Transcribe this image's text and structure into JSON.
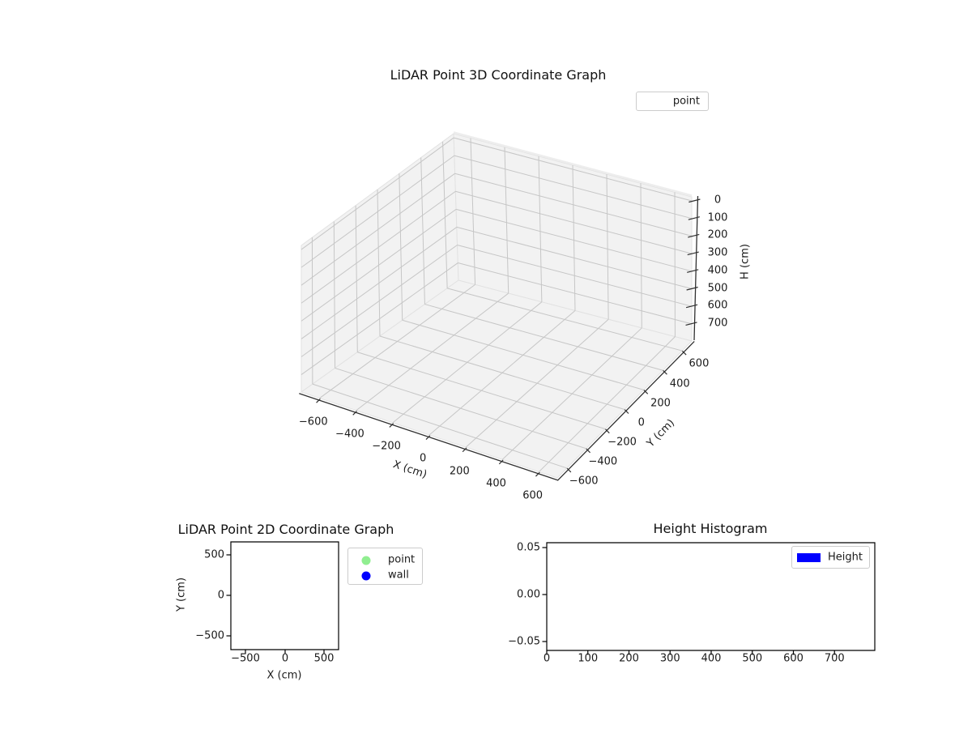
{
  "figure": {
    "background": "#ffffff"
  },
  "chart_data": [
    {
      "type": "scatter",
      "projection": "3d",
      "title": "LiDAR Point 3D Coordinate Graph",
      "xlabel": "X (cm)",
      "ylabel": "Y (cm)",
      "zlabel": "H (cm)",
      "xlim": [
        -700,
        700
      ],
      "ylim": [
        -700,
        700
      ],
      "zlim": [
        0,
        735
      ],
      "zaxis_inverted": true,
      "xticks": [
        -600,
        -400,
        -200,
        0,
        200,
        400,
        600
      ],
      "yticks": [
        -600,
        -400,
        -200,
        0,
        200,
        400,
        600
      ],
      "zticks": [
        0,
        100,
        200,
        300,
        400,
        500,
        600,
        700
      ],
      "grid": true,
      "legend": {
        "position": "upper right outside",
        "entries": [
          {
            "label": "point",
            "marker": "none-visible"
          }
        ]
      },
      "series": [
        {
          "name": "point",
          "points": []
        }
      ]
    },
    {
      "type": "scatter",
      "projection": "2d",
      "title": "LiDAR Point 2D Coordinate Graph",
      "xlabel": "X (cm)",
      "ylabel": "Y (cm)",
      "xlim": [
        -685,
        685
      ],
      "ylim": [
        -665,
        655
      ],
      "xticks": [
        -500,
        0,
        500
      ],
      "yticks": [
        500,
        0,
        -500
      ],
      "grid": false,
      "legend": {
        "position": "outside right",
        "entries": [
          {
            "label": "point",
            "marker": "circle",
            "color": "#90EE90"
          },
          {
            "label": "wall",
            "marker": "circle",
            "color": "#0000FF"
          }
        ]
      },
      "series": [
        {
          "name": "point",
          "points": []
        },
        {
          "name": "wall",
          "points": []
        }
      ]
    },
    {
      "type": "bar",
      "projection": "2d",
      "title": "Height Histogram",
      "xlabel": "",
      "ylabel": "",
      "xlim": [
        0,
        799
      ],
      "ylim": [
        -0.055,
        0.055
      ],
      "xticks": [
        0,
        100,
        200,
        300,
        400,
        500,
        600,
        700
      ],
      "yticks": [
        0.05,
        0.0,
        -0.05
      ],
      "ytick_decimals": 2,
      "grid": false,
      "legend": {
        "position": "upper right",
        "entries": [
          {
            "label": "Height",
            "marker": "rect",
            "color": "#0000FF"
          }
        ]
      },
      "categories": [],
      "values": []
    }
  ]
}
